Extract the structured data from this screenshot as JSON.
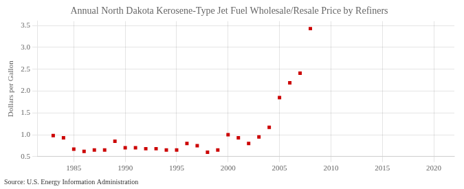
{
  "chart_data": {
    "type": "scatter",
    "title": "Annual North Dakota Kerosene-Type Jet Fuel Wholesale/Resale Price by Refiners",
    "ylabel": "Dollars per Gallon",
    "annotations": [
      "Source: U.S. Energy Information Administration"
    ],
    "x": [
      1983,
      1984,
      1985,
      1986,
      1987,
      1988,
      1989,
      1990,
      1991,
      1992,
      1993,
      1994,
      1995,
      1996,
      1997,
      1998,
      1999,
      2000,
      2001,
      2002,
      2003,
      2004,
      2005,
      2006,
      2007,
      2008
    ],
    "values": [
      0.98,
      0.93,
      0.67,
      0.62,
      0.65,
      0.65,
      0.85,
      0.7,
      0.7,
      0.68,
      0.68,
      0.65,
      0.65,
      0.8,
      0.75,
      0.6,
      0.65,
      1.0,
      0.93,
      0.8,
      0.95,
      1.17,
      1.85,
      2.19,
      2.41,
      3.43
    ],
    "color": "#cc0000",
    "marker": "square",
    "xlim": [
      1981.5,
      2022
    ],
    "xticks": [
      1985,
      1990,
      1995,
      2000,
      2005,
      2010,
      2015,
      2020
    ],
    "ylim": [
      0.5,
      3.6
    ],
    "yticks": [
      0.5,
      {
        "value": 1.0,
        "label": "1.0"
      },
      1.5,
      {
        "value": 2.0,
        "label": "2.0"
      },
      2.5,
      {
        "value": 3.0,
        "label": "3.0"
      },
      3.5
    ],
    "grid": true
  }
}
